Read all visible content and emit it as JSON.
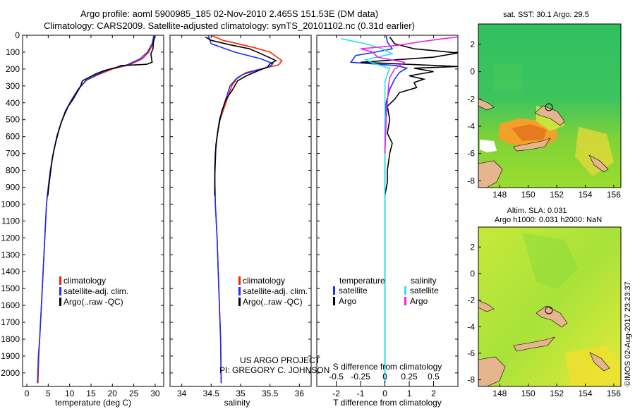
{
  "header": {
    "line1": "Argo profile: aoml 5900985_185 02-Nov-2010 2.465S 151.53E (DM data)",
    "line2": "Climatology: CARS2009. Satellite-adjusted climatology: synTS_20101102.nc (0.31d earlier)"
  },
  "colors": {
    "clim": "#ff2200",
    "sat": "#1a2cff",
    "argo": "#000000",
    "sal_sat": "#22e8e8",
    "sal_argo": "#ee22ee"
  },
  "chart_data": [
    {
      "id": "temperature",
      "type": "line",
      "xlabel": "temperature (deg C)",
      "ylabel": "depth",
      "xlim": [
        -1,
        32
      ],
      "ylim": [
        2080,
        0
      ],
      "xticks": [
        0,
        5,
        10,
        15,
        20,
        25,
        30
      ],
      "yticks": [
        0,
        100,
        200,
        300,
        400,
        500,
        600,
        700,
        800,
        900,
        1000,
        1100,
        1200,
        1300,
        1400,
        1500,
        1600,
        1700,
        1800,
        1900,
        2000
      ],
      "legend": [
        "climatology",
        "satellite-adj. clim.",
        "Argo(..raw -QC)"
      ],
      "series": [
        {
          "name": "climatology",
          "color_key": "clim",
          "points": [
            [
              29.9,
              0
            ],
            [
              29.5,
              50
            ],
            [
              28.5,
              100
            ],
            [
              27,
              140
            ],
            [
              24,
              175
            ],
            [
              20,
              200
            ],
            [
              17,
              230
            ],
            [
              14,
              265
            ],
            [
              12,
              320
            ],
            [
              10.5,
              380
            ],
            [
              9,
              450
            ],
            [
              8,
              520
            ],
            [
              7,
              600
            ],
            [
              6.2,
              700
            ],
            [
              5.5,
              800
            ],
            [
              5,
              900
            ],
            [
              4.6,
              1000
            ],
            [
              4.2,
              1200
            ],
            [
              3.8,
              1400
            ],
            [
              3.4,
              1600
            ],
            [
              3.0,
              1800
            ],
            [
              2.8,
              1900
            ],
            [
              2.6,
              2060
            ]
          ]
        },
        {
          "name": "satellite-adj. clim.",
          "color_key": "sat",
          "points": [
            [
              29.7,
              0
            ],
            [
              29.3,
              50
            ],
            [
              28.2,
              100
            ],
            [
              26.5,
              140
            ],
            [
              23.5,
              175
            ],
            [
              19.5,
              200
            ],
            [
              16.5,
              232
            ],
            [
              13.8,
              268
            ],
            [
              12,
              320
            ],
            [
              10.5,
              380
            ],
            [
              9,
              450
            ],
            [
              8,
              520
            ],
            [
              7,
              600
            ],
            [
              6.2,
              700
            ],
            [
              5.5,
              800
            ],
            [
              5,
              900
            ],
            [
              4.6,
              1000
            ],
            [
              4.2,
              1200
            ],
            [
              3.8,
              1400
            ],
            [
              3.4,
              1600
            ],
            [
              3.0,
              1800
            ],
            [
              2.7,
              1900
            ],
            [
              2.5,
              2060
            ]
          ]
        },
        {
          "name": "Argo(..raw -QC)",
          "color_key": "argo",
          "points": [
            [
              29.9,
              10
            ],
            [
              29.6,
              40
            ],
            [
              29.5,
              80
            ],
            [
              29.0,
              110
            ],
            [
              29.3,
              160
            ],
            [
              28,
              172
            ],
            [
              22,
              180
            ],
            [
              21,
              190
            ],
            [
              18,
              210
            ],
            [
              16,
              230
            ],
            [
              14.5,
              250
            ],
            [
              13,
              270
            ],
            [
              12.6,
              300
            ],
            [
              11.7,
              340
            ],
            [
              10.8,
              380
            ],
            [
              9.7,
              420
            ],
            [
              8.8,
              470
            ],
            [
              8,
              520
            ],
            [
              7.3,
              580
            ],
            [
              6.6,
              650
            ],
            [
              6.0,
              720
            ],
            [
              5.6,
              800
            ],
            [
              5.2,
              880
            ],
            [
              4.9,
              950
            ]
          ]
        }
      ]
    },
    {
      "id": "salinity",
      "type": "line",
      "xlabel": "salinity",
      "ylim": [
        2080,
        0
      ],
      "xlim": [
        33.8,
        36.2
      ],
      "xticks": [
        34,
        34.5,
        35,
        35.5,
        36
      ],
      "xtick_labels": [
        "34",
        "34.5",
        "35",
        "35.5",
        "36"
      ],
      "legend": [
        "climatology",
        "satellite-adj. clim.",
        "Argo(..raw -QC)"
      ],
      "credit": [
        "US ARGO PROJECT",
        "PI: GREGORY C. JOHNSON"
      ],
      "series": [
        {
          "name": "climatology",
          "color_key": "clim",
          "points": [
            [
              34.5,
              0
            ],
            [
              34.7,
              30
            ],
            [
              35.2,
              70
            ],
            [
              35.5,
              100
            ],
            [
              35.7,
              150
            ],
            [
              35.65,
              175
            ],
            [
              35.4,
              195
            ],
            [
              35.1,
              220
            ],
            [
              34.95,
              250
            ],
            [
              34.85,
              300
            ],
            [
              34.75,
              400
            ],
            [
              34.65,
              500
            ],
            [
              34.6,
              600
            ],
            [
              34.57,
              700
            ],
            [
              34.56,
              800
            ],
            [
              34.57,
              1000
            ],
            [
              34.6,
              1200
            ],
            [
              34.62,
              1400
            ],
            [
              34.64,
              1600
            ],
            [
              34.66,
              1800
            ],
            [
              34.67,
              2060
            ]
          ]
        },
        {
          "name": "satellite-adj. clim.",
          "color_key": "sat",
          "points": [
            [
              34.45,
              0
            ],
            [
              34.5,
              50
            ],
            [
              34.9,
              100
            ],
            [
              35.35,
              140
            ],
            [
              35.55,
              168
            ],
            [
              35.5,
              185
            ],
            [
              35.3,
              205
            ],
            [
              35.05,
              230
            ],
            [
              34.92,
              260
            ],
            [
              34.82,
              300
            ],
            [
              34.73,
              400
            ],
            [
              34.64,
              500
            ],
            [
              34.6,
              600
            ],
            [
              34.57,
              700
            ],
            [
              34.56,
              800
            ],
            [
              34.57,
              1000
            ],
            [
              34.6,
              1200
            ],
            [
              34.62,
              1400
            ],
            [
              34.64,
              1600
            ],
            [
              34.66,
              1800
            ],
            [
              34.67,
              2060
            ]
          ]
        },
        {
          "name": "Argo(..raw -QC)",
          "color_key": "argo",
          "points": [
            [
              34.4,
              10
            ],
            [
              34.5,
              30
            ],
            [
              34.8,
              55
            ],
            [
              35.15,
              80
            ],
            [
              35.35,
              110
            ],
            [
              35.6,
              150
            ],
            [
              35.5,
              170
            ],
            [
              35.45,
              190
            ],
            [
              35.3,
              210
            ],
            [
              35.1,
              240
            ],
            [
              34.95,
              270
            ],
            [
              34.9,
              300
            ],
            [
              34.85,
              330
            ],
            [
              34.75,
              380
            ],
            [
              34.68,
              450
            ],
            [
              34.62,
              550
            ],
            [
              34.58,
              650
            ],
            [
              34.57,
              750
            ],
            [
              34.56,
              850
            ],
            [
              34.56,
              950
            ]
          ]
        }
      ]
    },
    {
      "id": "difference",
      "type": "line",
      "xlabel": "T difference from climatology",
      "xlabel_top": "S difference from climatology",
      "ylim": [
        2080,
        0
      ],
      "xlim": [
        -2.8,
        3.0
      ],
      "xticks": [
        -2,
        -1,
        0,
        1,
        2
      ],
      "s_xticks": [
        -0.5,
        -0.25,
        0,
        0.25,
        0.5
      ],
      "s_xtick_labels": [
        "-0.5",
        "-0.25",
        "0",
        "0.25",
        "0.5"
      ],
      "s_scale": 4,
      "legend_temperature": {
        "title": "temperature",
        "items": [
          "satellite",
          "Argo"
        ]
      },
      "legend_salinity": {
        "title": "salinity",
        "items": [
          "satellite",
          "Argo"
        ]
      },
      "series": [
        {
          "name": "T satellite",
          "color_key": "sat",
          "points": [
            [
              0.05,
              0
            ],
            [
              0.1,
              40
            ],
            [
              0.3,
              80
            ],
            [
              -0.4,
              100
            ],
            [
              -1.2,
              120
            ],
            [
              -1.4,
              160
            ],
            [
              0.5,
              180
            ],
            [
              0.9,
              195
            ],
            [
              0.6,
              220
            ],
            [
              0.4,
              260
            ],
            [
              0.2,
              320
            ],
            [
              0.05,
              400
            ],
            [
              0.0,
              500
            ],
            [
              0,
              700
            ],
            [
              0,
              1000
            ],
            [
              0,
              1500
            ],
            [
              0,
              2060
            ]
          ]
        },
        {
          "name": "T Argo",
          "color_key": "argo",
          "points": [
            [
              0.2,
              10
            ],
            [
              0.4,
              50
            ],
            [
              1.2,
              80
            ],
            [
              3.0,
              105
            ],
            [
              2.0,
              130
            ],
            [
              -1.0,
              160
            ],
            [
              3.0,
              185
            ],
            [
              1.2,
              195
            ],
            [
              2.0,
              215
            ],
            [
              1.0,
              240
            ],
            [
              1.6,
              260
            ],
            [
              1.2,
              280
            ],
            [
              1.3,
              310
            ],
            [
              0.6,
              340
            ],
            [
              0.4,
              380
            ],
            [
              0.1,
              420
            ],
            [
              0.2,
              500
            ],
            [
              0.1,
              580
            ],
            [
              0.3,
              640
            ],
            [
              0.2,
              700
            ],
            [
              0.1,
              800
            ],
            [
              0.1,
              870
            ],
            [
              0.0,
              950
            ]
          ]
        },
        {
          "name": "S satellite",
          "color_key": "sal_sat",
          "points": [
            [
              -1.8,
              20
            ],
            [
              -0.8,
              50
            ],
            [
              -0.1,
              80
            ],
            [
              0.3,
              110
            ],
            [
              -0.8,
              145
            ],
            [
              -0.4,
              170
            ],
            [
              0.2,
              195
            ],
            [
              0.1,
              230
            ],
            [
              0.0,
              280
            ],
            [
              0.0,
              400
            ],
            [
              0,
              600
            ],
            [
              0,
              1000
            ],
            [
              0,
              2060
            ]
          ]
        },
        {
          "name": "S Argo",
          "color_key": "sal_argo",
          "points": [
            [
              3.0,
              10
            ],
            [
              2.4,
              20
            ],
            [
              1.4,
              40
            ],
            [
              0.5,
              60
            ],
            [
              -1.0,
              80
            ],
            [
              -0.5,
              100
            ],
            [
              -0.3,
              130
            ],
            [
              0.8,
              160
            ],
            [
              0.4,
              200
            ],
            [
              0.2,
              250
            ],
            [
              0.15,
              300
            ],
            [
              0.1,
              400
            ],
            [
              0.05,
              500
            ],
            [
              0.0,
              700
            ]
          ]
        }
      ]
    }
  ],
  "maps": {
    "sst": {
      "title": "sat. SST: 30.1 Argo: 29.5",
      "xticks": [
        "148",
        "150",
        "152",
        "154",
        "156"
      ],
      "yticks": [
        "2",
        "0",
        "-2",
        "-4",
        "-6",
        "-8"
      ]
    },
    "sla": {
      "title_line1": "Altim. SLA: 0.031",
      "title_line2": "Argo h1000: 0.031 h2000: NaN",
      "xticks": [
        "148",
        "150",
        "152",
        "154",
        "156"
      ],
      "yticks": [
        "2",
        "0",
        "-2",
        "-4",
        "-6",
        "-8"
      ]
    },
    "stamp": "©IMOS 02-Aug-2017 23:23:37"
  }
}
